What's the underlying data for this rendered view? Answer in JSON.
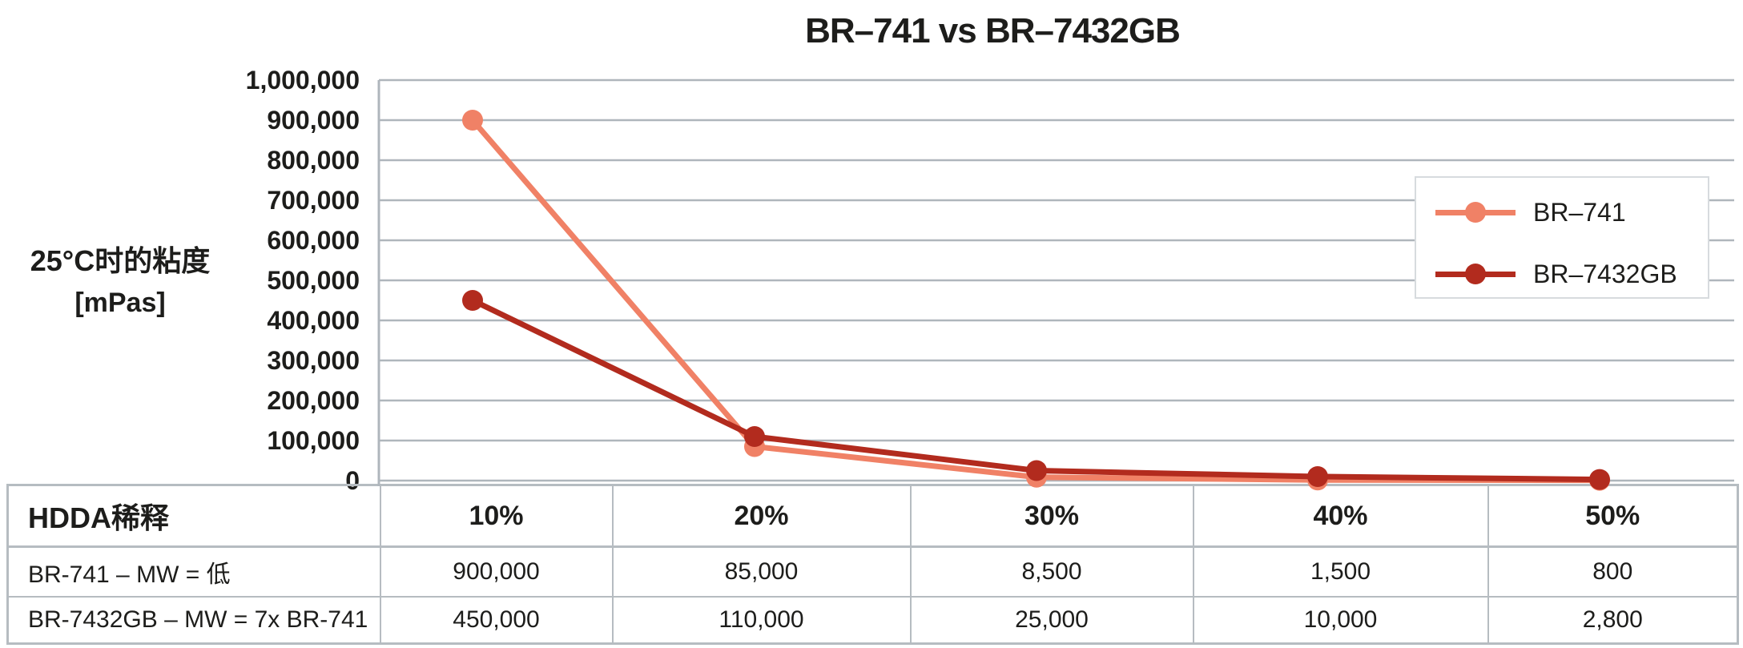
{
  "page": {
    "background": "#ffffff",
    "text_color": "#1d1d1b",
    "grid_color": "#afb6bc",
    "axis_color": "#afb6bc",
    "table_border_color": "#b6bcc1",
    "legend_border_color": "#d7dbde"
  },
  "chart_data": {
    "type": "line",
    "title": "BR–741 vs BR–7432GB",
    "y_axis_title_line1": "25°C时的粘度",
    "y_axis_title_line2": "[mPas]",
    "xlabel": "",
    "ylabel": "25°C时的粘度 [mPas]",
    "categories": [
      "10%",
      "20%",
      "30%",
      "40%",
      "50%"
    ],
    "series": [
      {
        "name": "BR–741",
        "color": "#F08166",
        "values": [
          900000,
          85000,
          8500,
          1500,
          800
        ]
      },
      {
        "name": "BR–7432GB",
        "color": "#B22B1E",
        "values": [
          450000,
          110000,
          25000,
          10000,
          2800
        ]
      }
    ],
    "ylim": [
      0,
      1000000
    ],
    "ytick_step": 100000,
    "ytick_labels": [
      "1,000,000",
      "900,000",
      "800,000",
      "700,000",
      "600,000",
      "500,000",
      "400,000",
      "300,000",
      "200,000",
      "100,000",
      "0"
    ],
    "grid": "horizontal",
    "legend_position": "right-inside"
  },
  "table": {
    "header_label": "HDDA稀释",
    "columns": [
      "10%",
      "20%",
      "30%",
      "40%",
      "50%"
    ],
    "rows": [
      {
        "label": "BR-741 – MW = 低",
        "values": [
          "900,000",
          "85,000",
          "8,500",
          "1,500",
          "800"
        ]
      },
      {
        "label": "BR-7432GB – MW = 7x BR-741",
        "values": [
          "450,000",
          "110,000",
          "25,000",
          "10,000",
          "2,800"
        ]
      }
    ]
  }
}
